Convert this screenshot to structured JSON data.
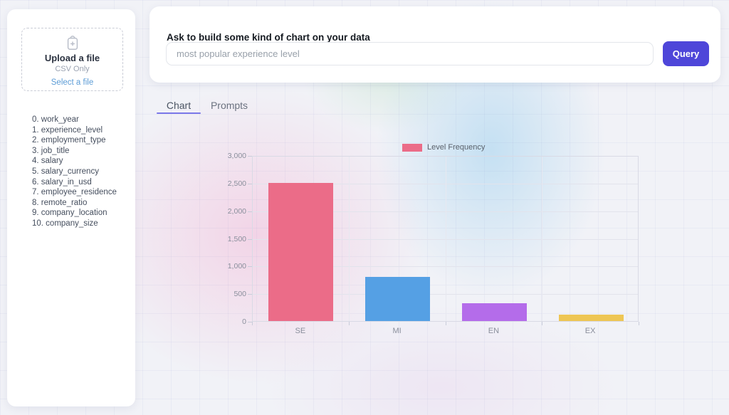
{
  "sidebar": {
    "upload": {
      "title": "Upload a file",
      "subtitle": "CSV Only",
      "action": "Select a file"
    },
    "columns": [
      "0. work_year",
      "1. experience_level",
      "2. employment_type",
      "3. job_title",
      "4. salary",
      "5. salary_currency",
      "6. salary_in_usd",
      "7. employee_residence",
      "8. remote_ratio",
      "9. company_location",
      "10. company_size"
    ]
  },
  "query_panel": {
    "heading": "Ask to build some kind of chart on your data",
    "input_value": "most popular experience level",
    "button_label": "Query"
  },
  "tabs": [
    {
      "label": "Chart",
      "active": true
    },
    {
      "label": "Prompts",
      "active": false
    }
  ],
  "chart_data": {
    "type": "bar",
    "title": "",
    "categories": [
      "SE",
      "MI",
      "EN",
      "EX"
    ],
    "series": [
      {
        "name": "Level Frequency",
        "values": [
          2516,
          805,
          320,
          114
        ]
      }
    ],
    "bar_colors": [
      "#EB6C88",
      "#55A0E4",
      "#B46CEA",
      "#EEC654"
    ],
    "legend": {
      "label": "Level Frequency",
      "position": "top",
      "swatch_color": "#EB6C88"
    },
    "ylim": [
      0,
      3000
    ],
    "ytick_step": 500,
    "ytick_labels": [
      "0",
      "500",
      "1,000",
      "1,500",
      "2,000",
      "2,500",
      "3,000"
    ],
    "xlabel": "",
    "ylabel": "",
    "grid": true
  },
  "colors": {
    "accent": "#4E46D9",
    "tab_underline": "#7B78E8",
    "link_blue": "#5C9CD6",
    "page_background": "#f1f2f7"
  }
}
